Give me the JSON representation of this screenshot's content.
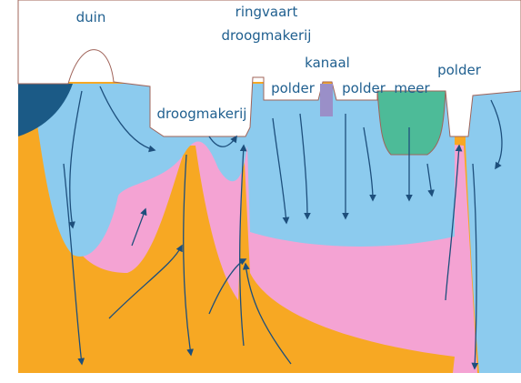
{
  "labels": [
    "duin",
    "ringvaart",
    "droogmakerij",
    "kanaal",
    "droogmakerij",
    "polder",
    "polder",
    "meer",
    "polder"
  ]
}
